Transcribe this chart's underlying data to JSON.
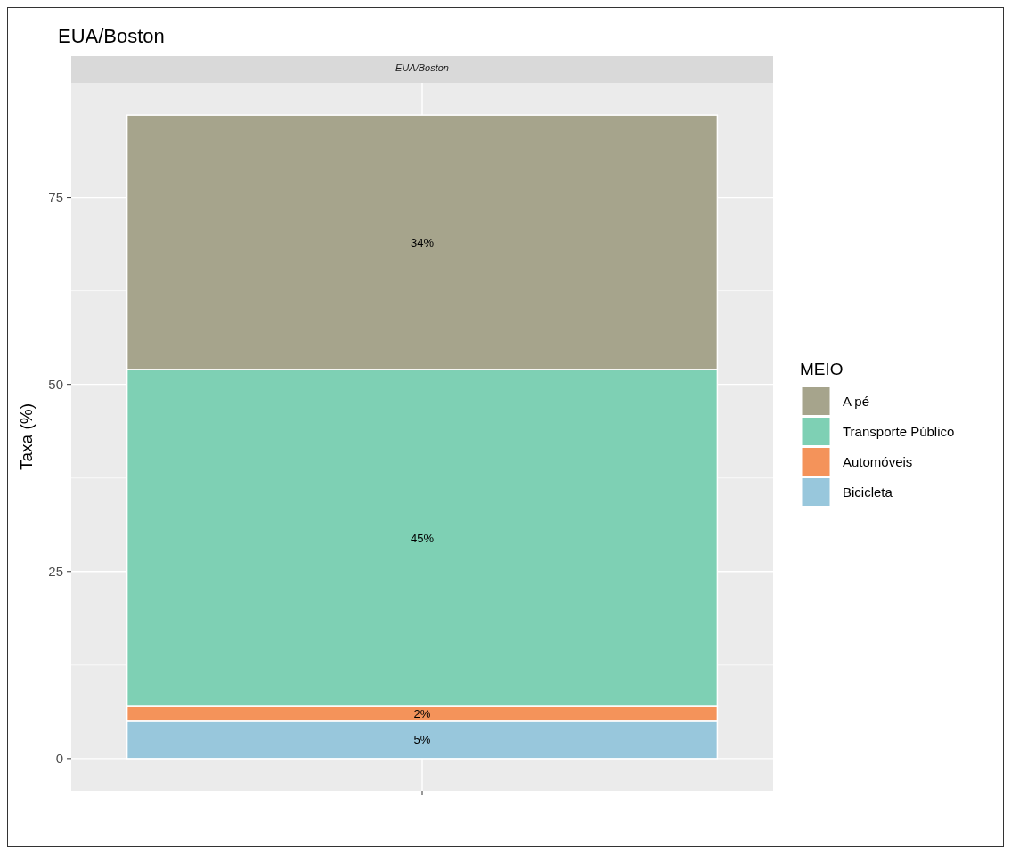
{
  "chart_data": {
    "type": "bar",
    "title": "EUA/Boston",
    "subtitle": "EUA/Boston",
    "ylabel": "Taxa (%)",
    "legend_title": "MEIO",
    "categories": [
      null
    ],
    "stacked": true,
    "series": [
      {
        "name": "Bicicleta",
        "color": "#98c7dc",
        "values": [
          5
        ],
        "value_labels": [
          "5%"
        ]
      },
      {
        "name": "Automóveis",
        "color": "#f4935a",
        "values": [
          2
        ],
        "value_labels": [
          "2%"
        ]
      },
      {
        "name": "Transporte Público",
        "color": "#7ed0b4",
        "values": [
          45
        ],
        "value_labels": [
          "45%"
        ]
      },
      {
        "name": "A pé",
        "color": "#a6a48c",
        "values": [
          34
        ],
        "value_labels": [
          "34%"
        ]
      }
    ],
    "ylim": [
      -4.3,
      90.3
    ],
    "yticks": [
      0,
      {
        "value": 12.5,
        "label": null
      },
      25,
      {
        "value": 37.5,
        "label": null
      },
      50,
      {
        "value": 62.5,
        "label": null
      },
      75
    ],
    "grid": true,
    "legend": "right"
  }
}
